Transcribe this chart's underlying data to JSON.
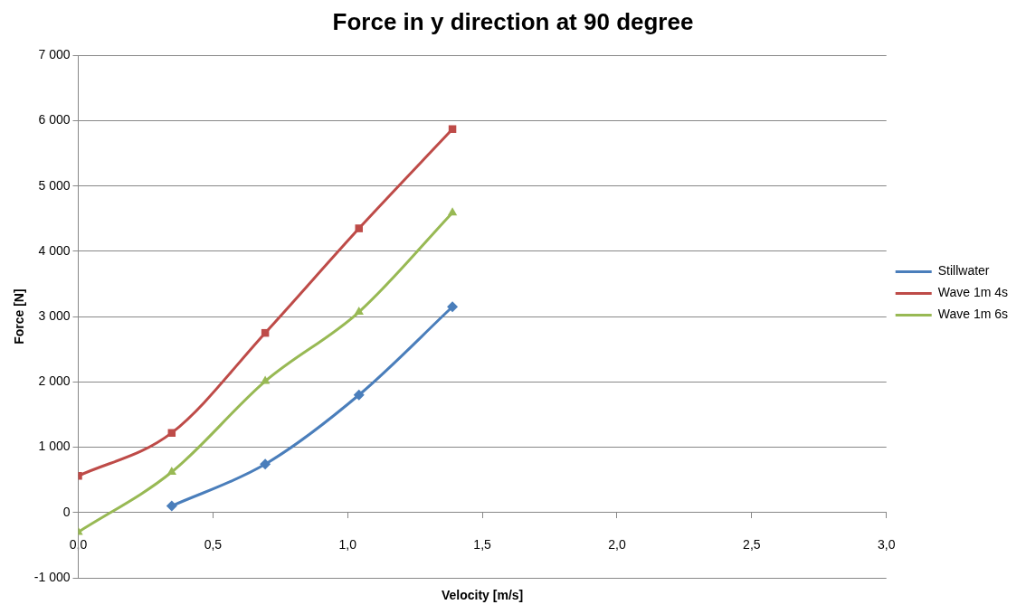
{
  "chart_data": {
    "type": "line",
    "title": "Force in y direction at 90 degree",
    "xlabel": "Velocity [m/s]",
    "ylabel": "Force [N]",
    "xlim": [
      0,
      3
    ],
    "xticks": [
      {
        "value": 0,
        "label": "0,0"
      },
      {
        "value": 0.5,
        "label": "0,5"
      },
      {
        "value": 1,
        "label": "1,0"
      },
      {
        "value": 1.5,
        "label": "1,5"
      },
      {
        "value": 2,
        "label": "2,0"
      },
      {
        "value": 2.5,
        "label": "2,5"
      },
      {
        "value": 3,
        "label": "3,0"
      }
    ],
    "ylim": [
      -1000,
      7000
    ],
    "yticks": [
      {
        "value": -1000,
        "label": "-1 000"
      },
      0,
      {
        "value": 1000,
        "label": "1 000"
      },
      {
        "value": 2000,
        "label": "2 000"
      },
      {
        "value": 3000,
        "label": "3 000"
      },
      {
        "value": 4000,
        "label": "4 000"
      },
      {
        "value": 5000,
        "label": "5 000"
      },
      {
        "value": 6000,
        "label": "6 000"
      },
      {
        "value": 7000,
        "label": "7 000"
      }
    ],
    "grid": "y",
    "legend": "right",
    "series": [
      {
        "name": "Stillwater",
        "color": "#4a7ebb",
        "marker": "diamond",
        "x": [
          0.347,
          0.694,
          1.042,
          1.389
        ],
        "values": [
          100,
          740,
          1800,
          3150
        ]
      },
      {
        "name": "Wave 1m 4s",
        "color": "#be4b48",
        "marker": "square",
        "x": [
          0,
          0.347,
          0.694,
          1.042,
          1.389
        ],
        "values": [
          560,
          1220,
          2750,
          4350,
          5870
        ]
      },
      {
        "name": "Wave 1m 6s",
        "color": "#98b954",
        "marker": "triangle",
        "x": [
          0,
          0.347,
          0.694,
          1.042,
          1.389
        ],
        "values": [
          -300,
          620,
          2010,
          3070,
          4590
        ]
      }
    ]
  }
}
